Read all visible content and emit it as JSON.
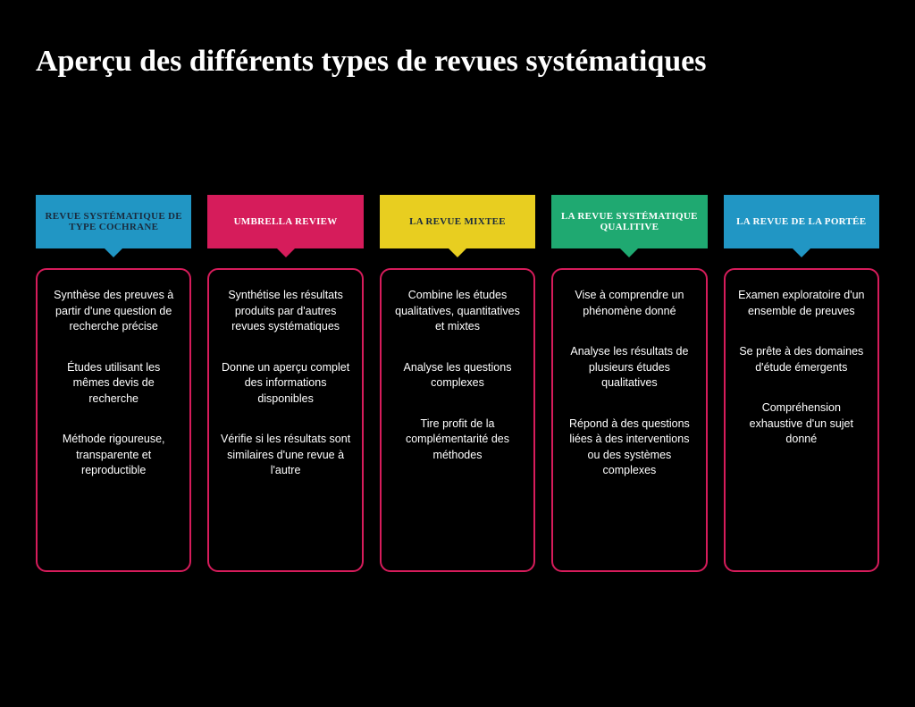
{
  "title": "Aperçu  des différents types de revues systématiques",
  "background_color": "#000000",
  "border_color": "#d61c5b",
  "columns": [
    {
      "header_label": "REVUE SYSTÉMATIQUE DE TYPE COCHRANE",
      "header_bg": "#2196c4",
      "header_text_color": "#1a2b3d",
      "items": [
        "Synthèse des preuves à partir d'une question de recherche précise",
        "Études utilisant les mêmes devis de recherche",
        "Méthode rigoureuse, transparente et reproductible"
      ]
    },
    {
      "header_label": "UMBRELLA REVIEW",
      "header_bg": "#d61c5b",
      "header_text_color": "#ffffff",
      "items": [
        "Synthétise les résultats produits par d'autres revues systématiques",
        "Donne un aperçu complet des informations disponibles",
        "Vérifie si les résultats sont similaires d'une revue à l'autre"
      ]
    },
    {
      "header_label": "LA REVUE MIXTEE",
      "header_bg": "#e8ce20",
      "header_text_color": "#1a2b3d",
      "items": [
        "Combine les études qualitatives, quantitatives et mixtes",
        "Analyse les questions complexes",
        "Tire profit de la complémentarité des méthodes"
      ]
    },
    {
      "header_label": "LA REVUE SYSTÉMATIQUE QUALITIVE",
      "header_bg": "#1fa971",
      "header_text_color": "#ffffff",
      "items": [
        "Vise à comprendre un phénomène donné",
        "Analyse les résultats de plusieurs études qualitatives",
        "Répond à des questions liées à des interventions ou des systèmes complexes"
      ]
    },
    {
      "header_label": "LA REVUE DE LA PORTÉE",
      "header_bg": "#2196c4",
      "header_text_color": "#ffffff",
      "items": [
        "Examen exploratoire d'un ensemble de preuves",
        "Se prête à des domaines d'étude émergents",
        "Compréhension exhaustive d'un sujet donné"
      ]
    }
  ]
}
